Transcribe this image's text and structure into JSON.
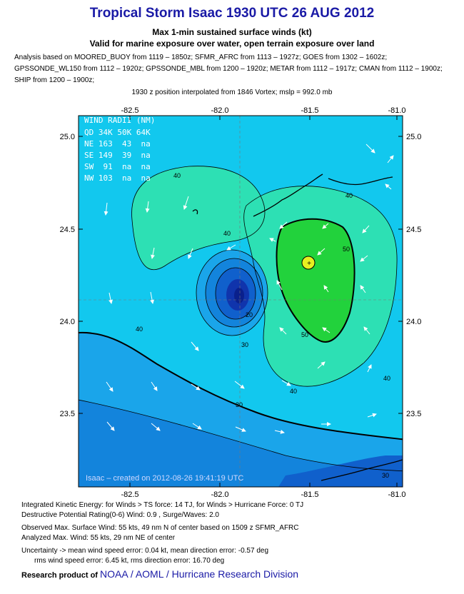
{
  "header": {
    "title": "Tropical Storm Isaac 1930 UTC 26 AUG 2012",
    "subtitle": "Max 1-min sustained surface winds (kt)",
    "exposure": "Valid for marine exposure over water, open terrain exposure over land",
    "analysis_lines": [
      "Analysis based on MOORED_BUOY from 1119 – 1850z; SFMR_AFRC from 1113 – 1927z; GOES from 1302 – 1602z;",
      "GPSSONDE_WL150 from 1112 – 1920z; GPSSONDE_MBL from 1200 – 1920z; METAR from 1112 – 1917z; CMAN from 1112 – 1900z;",
      "SHIP from 1200 – 1900z;"
    ],
    "position_note": "1930 z position interpolated from 1846 Vortex; mslp = 992.0 mb"
  },
  "map": {
    "lon_ticks": [
      "-82.5",
      "-82.0",
      "-81.5",
      "-81.0"
    ],
    "lat_ticks": [
      "25.0",
      "24.5",
      "24.0",
      "23.5"
    ],
    "contour_labels": [
      "40",
      "40",
      "40",
      "40",
      "40",
      "40",
      "50",
      "50",
      "30",
      "30",
      "30",
      "20"
    ],
    "wind_radii": {
      "title": "WIND RADII (NM)",
      "header": "QD 34K 50K 64K",
      "rows": [
        "NE 163  43  na",
        "SE 149  39  na",
        "SW  91  na  na",
        "NW 103  na  na"
      ]
    },
    "credit": "Isaac – created on 2012-08-26 19:41:19 UTC",
    "colors": {
      "band_30": "#12c8ee",
      "band_40": "#2de0b4",
      "band_50": "#22d23c",
      "band_55": "#e8f020",
      "low_1": "#1aa5ea",
      "low_2": "#1384dc",
      "low_3": "#1060cc",
      "core": "#1034ac"
    }
  },
  "stats": {
    "ike": "Integrated Kinetic Energy: for Winds > TS force: 14 TJ, for Winds > Hurricane Force: 0 TJ",
    "dpr": "Destructive Potential Rating(0-6)  Wind: 0.9 , Surge/Waves: 2.0",
    "observed": "Observed Max. Surface Wind: 55 kts, 49 nm N of center based on 1509 z SFMR_AFRC",
    "analyzed": "Analyzed Max. Wind: 55 kts, 29 nm  NE of center",
    "uncert1": "Uncertainty -> mean wind speed error: 0.04 kt, mean direction error:  -0.57 deg",
    "uncert2": "rms wind speed error: 6.45 kt, rms direction error: 16.70 deg"
  },
  "footer": {
    "prefix": "Research product of",
    "org": "NOAA  /  AOML  /  Hurricane Research Division"
  }
}
